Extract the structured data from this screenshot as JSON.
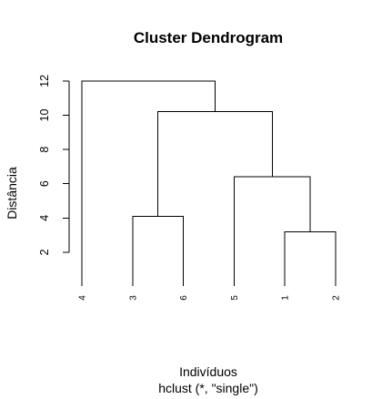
{
  "chart_data": {
    "type": "dendrogram",
    "title": "Cluster Dendrogram",
    "xlabel": "Indivíduos",
    "sublabel": "hclust (*, \"single\")",
    "ylabel": "Distância",
    "yticks": [
      2,
      4,
      6,
      8,
      10,
      12
    ],
    "leaves": [
      "4",
      "3",
      "6",
      "5",
      "1",
      "2"
    ],
    "merges": [
      {
        "left": "1",
        "right": "2",
        "height": 3.2
      },
      {
        "left": "5",
        "right": "(1,2)",
        "height": 6.4
      },
      {
        "left": "3",
        "right": "6",
        "height": 4.1
      },
      {
        "left": "(3,6)",
        "right": "(5,(1,2))",
        "height": 10.2
      },
      {
        "left": "4",
        "right": "(3,6,5,1,2)",
        "height": 12.0
      }
    ]
  }
}
